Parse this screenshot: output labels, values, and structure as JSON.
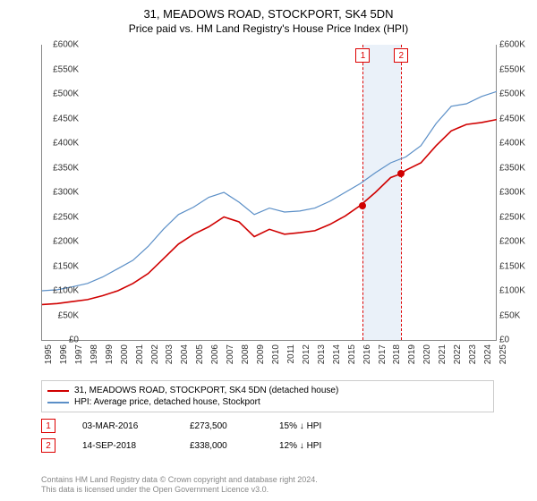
{
  "title": "31, MEADOWS ROAD, STOCKPORT, SK4 5DN",
  "subtitle": "Price paid vs. HM Land Registry's House Price Index (HPI)",
  "chart": {
    "type": "line",
    "ylim": [
      0,
      600000
    ],
    "ytick_step": 50000,
    "ytick_labels": [
      "£0",
      "£50K",
      "£100K",
      "£150K",
      "£200K",
      "£250K",
      "£300K",
      "£350K",
      "£400K",
      "£450K",
      "£500K",
      "£550K",
      "£600K"
    ],
    "xlim": [
      1995,
      2025
    ],
    "xtick_labels": [
      "1995",
      "1996",
      "1997",
      "1998",
      "1999",
      "2000",
      "2001",
      "2002",
      "2003",
      "2004",
      "2005",
      "2006",
      "2007",
      "2008",
      "2009",
      "2010",
      "2011",
      "2012",
      "2013",
      "2014",
      "2015",
      "2016",
      "2017",
      "2018",
      "2019",
      "2020",
      "2021",
      "2022",
      "2023",
      "2024",
      "2025"
    ],
    "background_color": "#ffffff",
    "axis_color": "#888888",
    "vband": {
      "start": 2016.17,
      "end": 2018.7,
      "color": "#dce8f5"
    },
    "vlines": [
      {
        "x": 2016.17,
        "color": "#d00000"
      },
      {
        "x": 2018.7,
        "color": "#d00000"
      }
    ],
    "marker_badges": [
      {
        "label": "1",
        "x": 2016.17
      },
      {
        "label": "2",
        "x": 2018.7
      }
    ],
    "series": [
      {
        "name": "price_paid",
        "color": "#d00000",
        "width": 1.6,
        "points": [
          [
            1995,
            72000
          ],
          [
            1996,
            74000
          ],
          [
            1997,
            78000
          ],
          [
            1998,
            82000
          ],
          [
            1999,
            90000
          ],
          [
            2000,
            100000
          ],
          [
            2001,
            115000
          ],
          [
            2002,
            135000
          ],
          [
            2003,
            165000
          ],
          [
            2004,
            195000
          ],
          [
            2005,
            215000
          ],
          [
            2006,
            230000
          ],
          [
            2007,
            250000
          ],
          [
            2008,
            240000
          ],
          [
            2009,
            210000
          ],
          [
            2010,
            225000
          ],
          [
            2011,
            215000
          ],
          [
            2012,
            218000
          ],
          [
            2013,
            222000
          ],
          [
            2014,
            235000
          ],
          [
            2015,
            252000
          ],
          [
            2016,
            273500
          ],
          [
            2017,
            300000
          ],
          [
            2018,
            330000
          ],
          [
            2018.7,
            338000
          ],
          [
            2019,
            345000
          ],
          [
            2020,
            360000
          ],
          [
            2021,
            395000
          ],
          [
            2022,
            425000
          ],
          [
            2023,
            438000
          ],
          [
            2024,
            442000
          ],
          [
            2025,
            448000
          ]
        ]
      },
      {
        "name": "hpi",
        "color": "#5b8fc7",
        "width": 1.2,
        "points": [
          [
            1995,
            100000
          ],
          [
            1996,
            102000
          ],
          [
            1997,
            108000
          ],
          [
            1998,
            115000
          ],
          [
            1999,
            128000
          ],
          [
            2000,
            145000
          ],
          [
            2001,
            162000
          ],
          [
            2002,
            190000
          ],
          [
            2003,
            225000
          ],
          [
            2004,
            255000
          ],
          [
            2005,
            270000
          ],
          [
            2006,
            290000
          ],
          [
            2007,
            300000
          ],
          [
            2008,
            280000
          ],
          [
            2009,
            255000
          ],
          [
            2010,
            268000
          ],
          [
            2011,
            260000
          ],
          [
            2012,
            262000
          ],
          [
            2013,
            268000
          ],
          [
            2014,
            282000
          ],
          [
            2015,
            300000
          ],
          [
            2016,
            318000
          ],
          [
            2017,
            340000
          ],
          [
            2018,
            360000
          ],
          [
            2019,
            372000
          ],
          [
            2020,
            395000
          ],
          [
            2021,
            440000
          ],
          [
            2022,
            475000
          ],
          [
            2023,
            480000
          ],
          [
            2024,
            495000
          ],
          [
            2025,
            505000
          ]
        ]
      }
    ],
    "sale_points": [
      {
        "x": 2016.17,
        "y": 273500,
        "color": "#d00000"
      },
      {
        "x": 2018.7,
        "y": 338000,
        "color": "#d00000"
      }
    ]
  },
  "legend": {
    "items": [
      {
        "color": "#d00000",
        "label": "31, MEADOWS ROAD, STOCKPORT, SK4 5DN (detached house)"
      },
      {
        "color": "#5b8fc7",
        "label": "HPI: Average price, detached house, Stockport"
      }
    ]
  },
  "markers": [
    {
      "badge": "1",
      "date": "03-MAR-2016",
      "price": "£273,500",
      "delta": "15% ↓ HPI"
    },
    {
      "badge": "2",
      "date": "14-SEP-2018",
      "price": "£338,000",
      "delta": "12% ↓ HPI"
    }
  ],
  "copyright": {
    "line1": "Contains HM Land Registry data © Crown copyright and database right 2024.",
    "line2": "This data is licensed under the Open Government Licence v3.0."
  }
}
